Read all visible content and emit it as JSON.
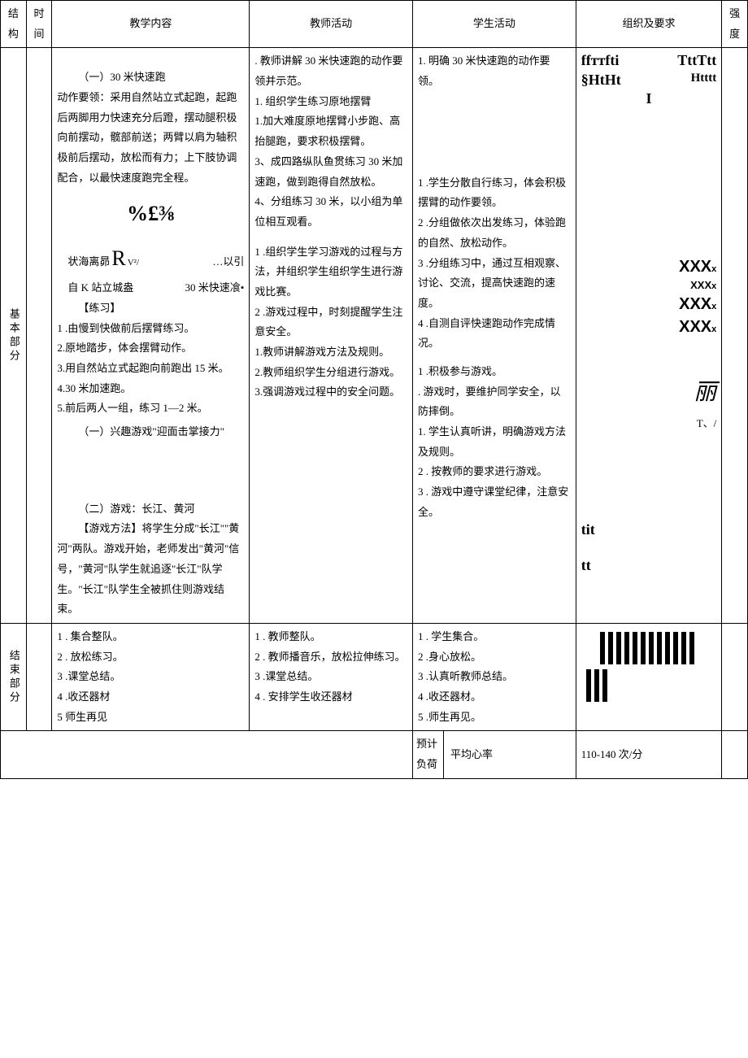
{
  "header": {
    "col_struct": "结构",
    "col_time": "时间",
    "col_content": "教学内容",
    "col_teacher": "教师活动",
    "col_student": "学生活动",
    "col_org": "组织及要求",
    "col_intensity": "强度"
  },
  "main": {
    "struct_label": "基本部分",
    "content": {
      "sec1_title": "（一）30 米快速跑",
      "sec1_body": "动作要领：采用自然站立式起跑，起跑后两脚用力快速充分后蹬，摆动腿积极向前摆动，髋部前送；两臂以肩为轴积极前后摆动，放松而有力；上下肢协调配合，以最快速度跑完全程。",
      "garble1": "%£⅜",
      "garble2_a": "状海离昴",
      "garble2_b": "R",
      "garble2_c": "V²/",
      "garble2_d": "…以引",
      "garble3_a": "自 K 站立城盎",
      "garble3_b": "30 米快速飡•",
      "practice_title": "【练习】",
      "p1": "1         .由慢到快做前后摆臂练习。",
      "p2": "2.原地踏步，体会摆臂动作。",
      "p3": "3.用自然站立式起跑向前跑出 15 米。",
      "p4": "4.30 米加速跑。",
      "p5": "5.前后两人一组，练习 1—2 米。",
      "sec_interest": "（一）兴趣游戏\"迎面击掌接力\"",
      "sec2_title": "（二）游戏：长江、黄河",
      "sec2_method_title": "【游戏方法】",
      "sec2_body": "将学生分成\"长江\"\"黄河\"两队。游戏开始，老师发出\"黄河\"信号，\"黄河\"队学生就追逐\"长江\"队学生。\"长江\"队学生全被抓住则游戏结束。"
    },
    "teacher": {
      "t0": ". 教师讲解 30 米快速跑的动作要领并示范。",
      "t1": "1. 组织学生练习原地摆臂",
      "t2": "1.加大难度原地摆臂小步跑、高抬腿跑，要求积极摆臂。",
      "t3": "3、成四路纵队鱼贯练习 30 米加速跑，做到跑得自然放松。",
      "t4": "4、分组练习 30 米，以小组为单位相互观看。",
      "t5": "1 .组织学生学习游戏的过程与方法，并组织学生组织学生进行游戏比赛。",
      "t6": "2 .游戏过程中，时刻提醒学生注意安全。",
      "t7": "1.教师讲解游戏方法及规则。",
      "t8": "2.教师组织学生分组进行游戏。",
      "t9": "3.强调游戏过程中的安全问题。"
    },
    "student": {
      "s1": "1. 明确 30 米快速跑的动作要领。",
      "s2": "1 .学生分散自行练习，体会积极摆臂的动作要领。",
      "s3": "2 .分组做依次出发练习，体验跑的自然、放松动作。",
      "s4": "3 .分组练习中，通过互相观察、讨论、交流，提高快速跑的速度。",
      "s5": "4 .自测自评快速跑动作完成情况。",
      "s6": "1 .积极参与游戏。",
      "s7": ". 游戏时，要维护同学安全，以防摔倒。",
      "s8": "1. 学生认真听讲，明确游戏方法及规则。",
      "s9": "2 . 按教师的要求进行游戏。",
      "s10": "3 . 游戏中遵守课堂纪律，注意安全。"
    },
    "org": {
      "g1a": "ffттfti",
      "g1b": "TttTtt",
      "g1c": "§HtHt",
      "g1d": "Htttt",
      "g1e": "I",
      "x_rows": [
        "XXX",
        "XXX",
        "XXX",
        "XXX"
      ],
      "x_sub": "x",
      "g2a": "丽",
      "g2b": "T、/",
      "g3a": "tit",
      "g3b": "tt",
      "colors": {
        "text": "#000000",
        "bg": "#ffffff"
      }
    }
  },
  "end": {
    "struct_label": "结束部分",
    "content": {
      "c1": "1          . 集合整队。",
      "c2": "2          . 放松练习。",
      "c3": "3         .课堂总结。",
      "c4": "4         .收还器材",
      "c5": "5 师生再见"
    },
    "teacher": {
      "t1": "1           . 教师整队。",
      "t2": "2           . 教师播音乐，放松拉伸练习。",
      "t3": "3          .课堂总结。",
      "t4": "4          . 安排学生收还器材"
    },
    "student": {
      "s1": "1          . 学生集合。",
      "s2": "2          .身心放松。",
      "s3": "3         .认真听教师总结。",
      "s4": "4         .收还器材。",
      "s5": "5         .师生再见。"
    },
    "org": {
      "tally_long_count": 12,
      "tally_short_count": 3,
      "tally_color": "#000000",
      "tally_bar_width": 6,
      "tally_bar_height_long": 40,
      "tally_bar_height_short": 40,
      "tally_gap": 4
    }
  },
  "footer": {
    "load_label": "预计负荷",
    "hr_label": "平均心率",
    "hr_value": "110-140 次/分"
  }
}
